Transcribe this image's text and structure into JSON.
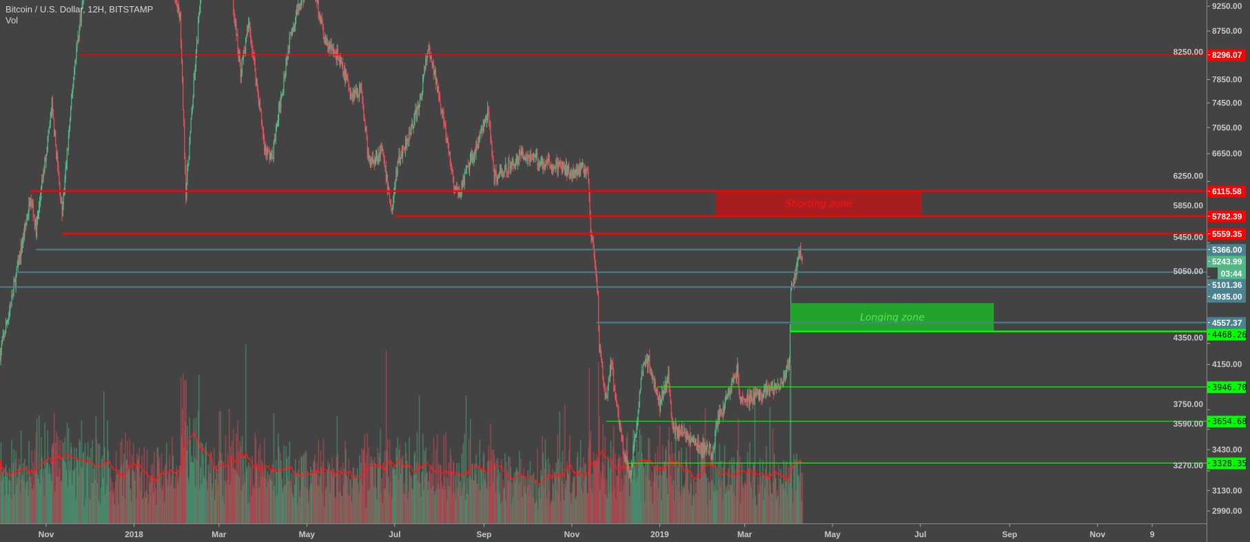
{
  "legend": {
    "symbol": "Bitcoin / U.S. Dollar, 12H, BITSTAMP",
    "indicator": "Vol"
  },
  "colors": {
    "background": "#434343",
    "up": "#53b987",
    "down": "#eb4d5c",
    "resistance": "#ff0000",
    "support": "#00ff00",
    "level": "#4a8290",
    "last_price": "#53b987",
    "volume_ma": "#ff1a1a",
    "axis_text": "#c8c8c8"
  },
  "chart_data": {
    "type": "candlestick",
    "title": "Bitcoin / U.S. Dollar, 12H, BITSTAMP",
    "interval": "12H",
    "y_scale": "log",
    "ylim": [
      2930,
      9450
    ],
    "grid": false,
    "price_ticks": [
      "9250.00",
      "8750.00",
      "8250.00",
      "7850.00",
      "7450.00",
      "7050.00",
      "6650.00",
      "6250.00",
      "5850.00",
      "5450.00",
      "5050.00",
      "4350.00",
      "4150.00",
      "3750.00",
      "3590.00",
      "3430.00",
      "3270.00",
      "3130.00",
      "2990.00"
    ],
    "time_ticks": [
      {
        "date": "2017-11-01",
        "label": "Nov"
      },
      {
        "date": "2018-01-01",
        "label": "2018"
      },
      {
        "date": "2018-03-01",
        "label": "Mar"
      },
      {
        "date": "2018-05-01",
        "label": "May"
      },
      {
        "date": "2018-07-01",
        "label": "Jul"
      },
      {
        "date": "2018-09-01",
        "label": "Sep"
      },
      {
        "date": "2018-11-01",
        "label": "Nov"
      },
      {
        "date": "2019-01-01",
        "label": "2019"
      },
      {
        "date": "2019-03-01",
        "label": "Mar"
      },
      {
        "date": "2019-05-01",
        "label": "May"
      },
      {
        "date": "2019-07-01",
        "label": "Jul"
      },
      {
        "date": "2019-09-01",
        "label": "Sep"
      },
      {
        "date": "2019-11-01",
        "label": "Nov"
      },
      {
        "date": "2019-12-09",
        "label": "9"
      }
    ],
    "price_path": [
      [
        "2017-09-30",
        4250
      ],
      [
        "2017-10-08",
        4800
      ],
      [
        "2017-10-20",
        5900
      ],
      [
        "2017-10-21",
        6100
      ],
      [
        "2017-10-25",
        5600
      ],
      [
        "2017-11-05",
        7400
      ],
      [
        "2017-11-12",
        5800
      ],
      [
        "2017-11-21",
        8200
      ],
      [
        "2017-11-27",
        9500
      ],
      [
        "2017-12-15",
        17000
      ],
      [
        "2018-01-16",
        11000
      ],
      [
        "2018-02-02",
        9000
      ],
      [
        "2018-02-06",
        6100
      ],
      [
        "2018-02-20",
        11200
      ],
      [
        "2018-03-05",
        11400
      ],
      [
        "2018-03-11",
        9200
      ],
      [
        "2018-03-16",
        8000
      ],
      [
        "2018-03-22",
        8900
      ],
      [
        "2018-04-02",
        6700
      ],
      [
        "2018-04-07",
        6600
      ],
      [
        "2018-04-20",
        8800
      ],
      [
        "2018-04-28",
        9400
      ],
      [
        "2018-05-05",
        9800
      ],
      [
        "2018-05-14",
        8500
      ],
      [
        "2018-05-22",
        8300
      ],
      [
        "2018-06-01",
        7600
      ],
      [
        "2018-06-08",
        7700
      ],
      [
        "2018-06-13",
        6500
      ],
      [
        "2018-06-22",
        6700
      ],
      [
        "2018-06-29",
        5850
      ],
      [
        "2018-07-03",
        6500
      ],
      [
        "2018-07-18",
        7400
      ],
      [
        "2018-07-24",
        8400
      ],
      [
        "2018-08-01",
        7600
      ],
      [
        "2018-08-11",
        6200
      ],
      [
        "2018-08-14",
        6050
      ],
      [
        "2018-08-24",
        6600
      ],
      [
        "2018-09-04",
        7300
      ],
      [
        "2018-09-08",
        6300
      ],
      [
        "2018-09-20",
        6500
      ],
      [
        "2018-09-28",
        6650
      ],
      [
        "2018-10-15",
        6500
      ],
      [
        "2018-11-01",
        6400
      ],
      [
        "2018-11-12",
        6450
      ],
      [
        "2018-11-14",
        5600
      ],
      [
        "2018-11-15",
        5500
      ],
      [
        "2018-11-19",
        4800
      ],
      [
        "2018-11-20",
        4300
      ],
      [
        "2018-11-25",
        3800
      ],
      [
        "2018-11-28",
        4200
      ],
      [
        "2018-12-07",
        3400
      ],
      [
        "2018-12-12",
        3250
      ],
      [
        "2018-12-20",
        4100
      ],
      [
        "2018-12-24",
        4200
      ],
      [
        "2019-01-01",
        3800
      ],
      [
        "2019-01-07",
        4050
      ],
      [
        "2019-01-10",
        3600
      ],
      [
        "2019-01-20",
        3550
      ],
      [
        "2019-01-28",
        3450
      ],
      [
        "2019-02-07",
        3400
      ],
      [
        "2019-02-10",
        3650
      ],
      [
        "2019-02-18",
        3900
      ],
      [
        "2019-02-24",
        4100
      ],
      [
        "2019-02-26",
        3800
      ],
      [
        "2019-03-15",
        3900
      ],
      [
        "2019-03-25",
        3950
      ],
      [
        "2019-04-01",
        4150
      ],
      [
        "2019-04-02",
        4900
      ],
      [
        "2019-04-05",
        5050
      ],
      [
        "2019-04-08",
        5350
      ],
      [
        "2019-04-10",
        5244
      ]
    ],
    "volume": {
      "label": "Vol",
      "moving_average": true
    },
    "horizontal_lines": [
      {
        "price": 8296.07,
        "label": "8296.07",
        "from": "2017-11-24",
        "kind": "resistance",
        "width": 1.5
      },
      {
        "price": 6115.58,
        "label": "6115.58",
        "from": "2017-10-21",
        "kind": "resistance",
        "width": 2.5
      },
      {
        "price": 5782.39,
        "label": "5782.39",
        "from": "2018-07-01",
        "kind": "resistance",
        "width": 2.5
      },
      {
        "price": 5559.35,
        "label": "5559.35",
        "from": "2017-11-12",
        "kind": "resistance",
        "width": 2.5
      },
      {
        "price": 5366.0,
        "label": "5366.00",
        "from": "2017-10-25",
        "kind": "level",
        "width": 2
      },
      {
        "price": 5101.36,
        "label": "5101.36",
        "from": "2017-10-11",
        "kind": "level",
        "width": 2
      },
      {
        "price": 4935.0,
        "label": "4935.00",
        "from": "2017-09-30",
        "kind": "level",
        "width": 2
      },
      {
        "price": 4557.37,
        "label": "4557.37",
        "from": "2018-11-18",
        "kind": "level",
        "width": 2
      },
      {
        "price": 4468.26,
        "label": "4468.26",
        "from": "2019-04-02",
        "kind": "support",
        "width": 2.5
      },
      {
        "price": 3946.7,
        "label": "3946.70",
        "from": "2018-12-31",
        "kind": "support",
        "width": 1.2
      },
      {
        "price": 3654.68,
        "label": "3654.68",
        "from": "2018-11-25",
        "kind": "support",
        "width": 1.2
      },
      {
        "price": 3328.35,
        "label": "3328.35",
        "from": "2018-12-09",
        "kind": "support",
        "width": 1.2
      }
    ],
    "zones": [
      {
        "label": "Shorting zone",
        "from": "2019-02-09",
        "to": "2019-07-02",
        "top": 6115.58,
        "bottom": 5782.39,
        "fill": "#a81e1e",
        "text_color": "#ff1010"
      },
      {
        "label": "Longing zone",
        "from": "2019-04-02",
        "to": "2019-08-21",
        "top": 4760,
        "bottom": 4468.26,
        "fill": "#22a32c",
        "text_color": "#55e655"
      }
    ],
    "last_price": {
      "value": 5243.99,
      "label": "5243.99",
      "countdown": "03:44"
    }
  }
}
